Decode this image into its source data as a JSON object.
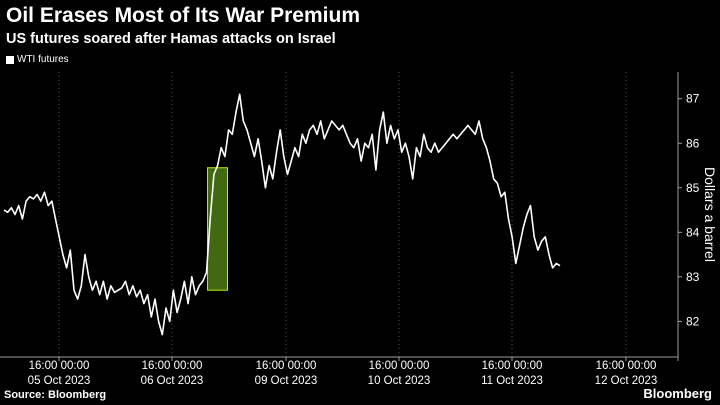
{
  "title": "Oil Erases Most of Its War Premium",
  "subtitle": "US futures soared after Hamas attacks on Israel",
  "source": "Source: Bloomberg",
  "brand": "Bloomberg",
  "colors": {
    "background": "#000000",
    "line": "#ffffff",
    "highlight_fill": "#4e7a14",
    "highlight_stroke": "#b8f000",
    "grid": "#555555"
  },
  "chart_data": {
    "type": "line",
    "ylabel": "Dollars a barrel",
    "ylim": [
      81.2,
      87.6
    ],
    "yticks": [
      82,
      83,
      84,
      85,
      86,
      87
    ],
    "y_axis_side": "right",
    "grid": "vertical-dotted",
    "legend_placement": "top-left",
    "x_tick_labels": [
      {
        "time": "16:00 00:00",
        "date": "05 Oct 2023"
      },
      {
        "time": "16:00 00:00",
        "date": "06 Oct 2023"
      },
      {
        "time": "16:00 00:00",
        "date": "09 Oct 2023"
      },
      {
        "time": "16:00 00:00",
        "date": "10 Oct 2023"
      },
      {
        "time": "16:00 00:00",
        "date": "11 Oct 2023"
      },
      {
        "time": "16:00 00:00",
        "date": "12 Oct 2023"
      }
    ],
    "highlight": {
      "y_low": 82.7,
      "y_high": 85.45,
      "description": "weekend gap"
    },
    "series": [
      {
        "name": "WTI futures",
        "values": [
          84.5,
          84.45,
          84.55,
          84.4,
          84.6,
          84.3,
          84.7,
          84.8,
          84.75,
          84.85,
          84.7,
          84.9,
          84.6,
          84.7,
          84.3,
          83.9,
          83.5,
          83.2,
          83.6,
          82.7,
          82.5,
          82.8,
          83.5,
          83.0,
          82.7,
          82.9,
          82.6,
          82.9,
          82.5,
          82.8,
          82.65,
          82.7,
          82.75,
          82.9,
          82.6,
          82.8,
          82.55,
          82.7,
          82.4,
          82.6,
          82.1,
          82.5,
          82.0,
          81.7,
          82.3,
          82.0,
          82.7,
          82.2,
          82.5,
          82.9,
          82.4,
          83.0,
          82.6,
          82.8,
          82.9,
          83.1,
          84.3,
          85.3,
          85.5,
          85.9,
          85.7,
          86.3,
          86.2,
          86.7,
          87.1,
          86.5,
          86.3,
          86.0,
          85.7,
          86.1,
          85.6,
          85.0,
          85.5,
          85.2,
          85.8,
          86.3,
          85.7,
          85.3,
          85.6,
          85.9,
          85.7,
          86.2,
          86.0,
          86.3,
          86.4,
          86.2,
          86.5,
          86.1,
          86.3,
          86.5,
          86.4,
          86.3,
          86.4,
          86.2,
          86.0,
          85.9,
          86.1,
          85.6,
          86.0,
          85.9,
          86.2,
          85.4,
          86.3,
          86.7,
          86.0,
          86.4,
          86.1,
          86.3,
          85.8,
          86.0,
          85.7,
          85.2,
          85.9,
          85.7,
          86.2,
          85.9,
          85.8,
          86.0,
          85.8,
          85.9,
          86.0,
          86.1,
          86.2,
          86.1,
          86.2,
          86.3,
          86.4,
          86.3,
          86.2,
          86.5,
          86.1,
          85.9,
          85.6,
          85.2,
          85.1,
          84.8,
          84.9,
          84.3,
          83.9,
          83.3,
          83.7,
          84.1,
          84.4,
          84.6,
          83.9,
          83.6,
          83.8,
          83.9,
          83.5,
          83.2,
          83.3,
          83.25
        ]
      }
    ]
  }
}
